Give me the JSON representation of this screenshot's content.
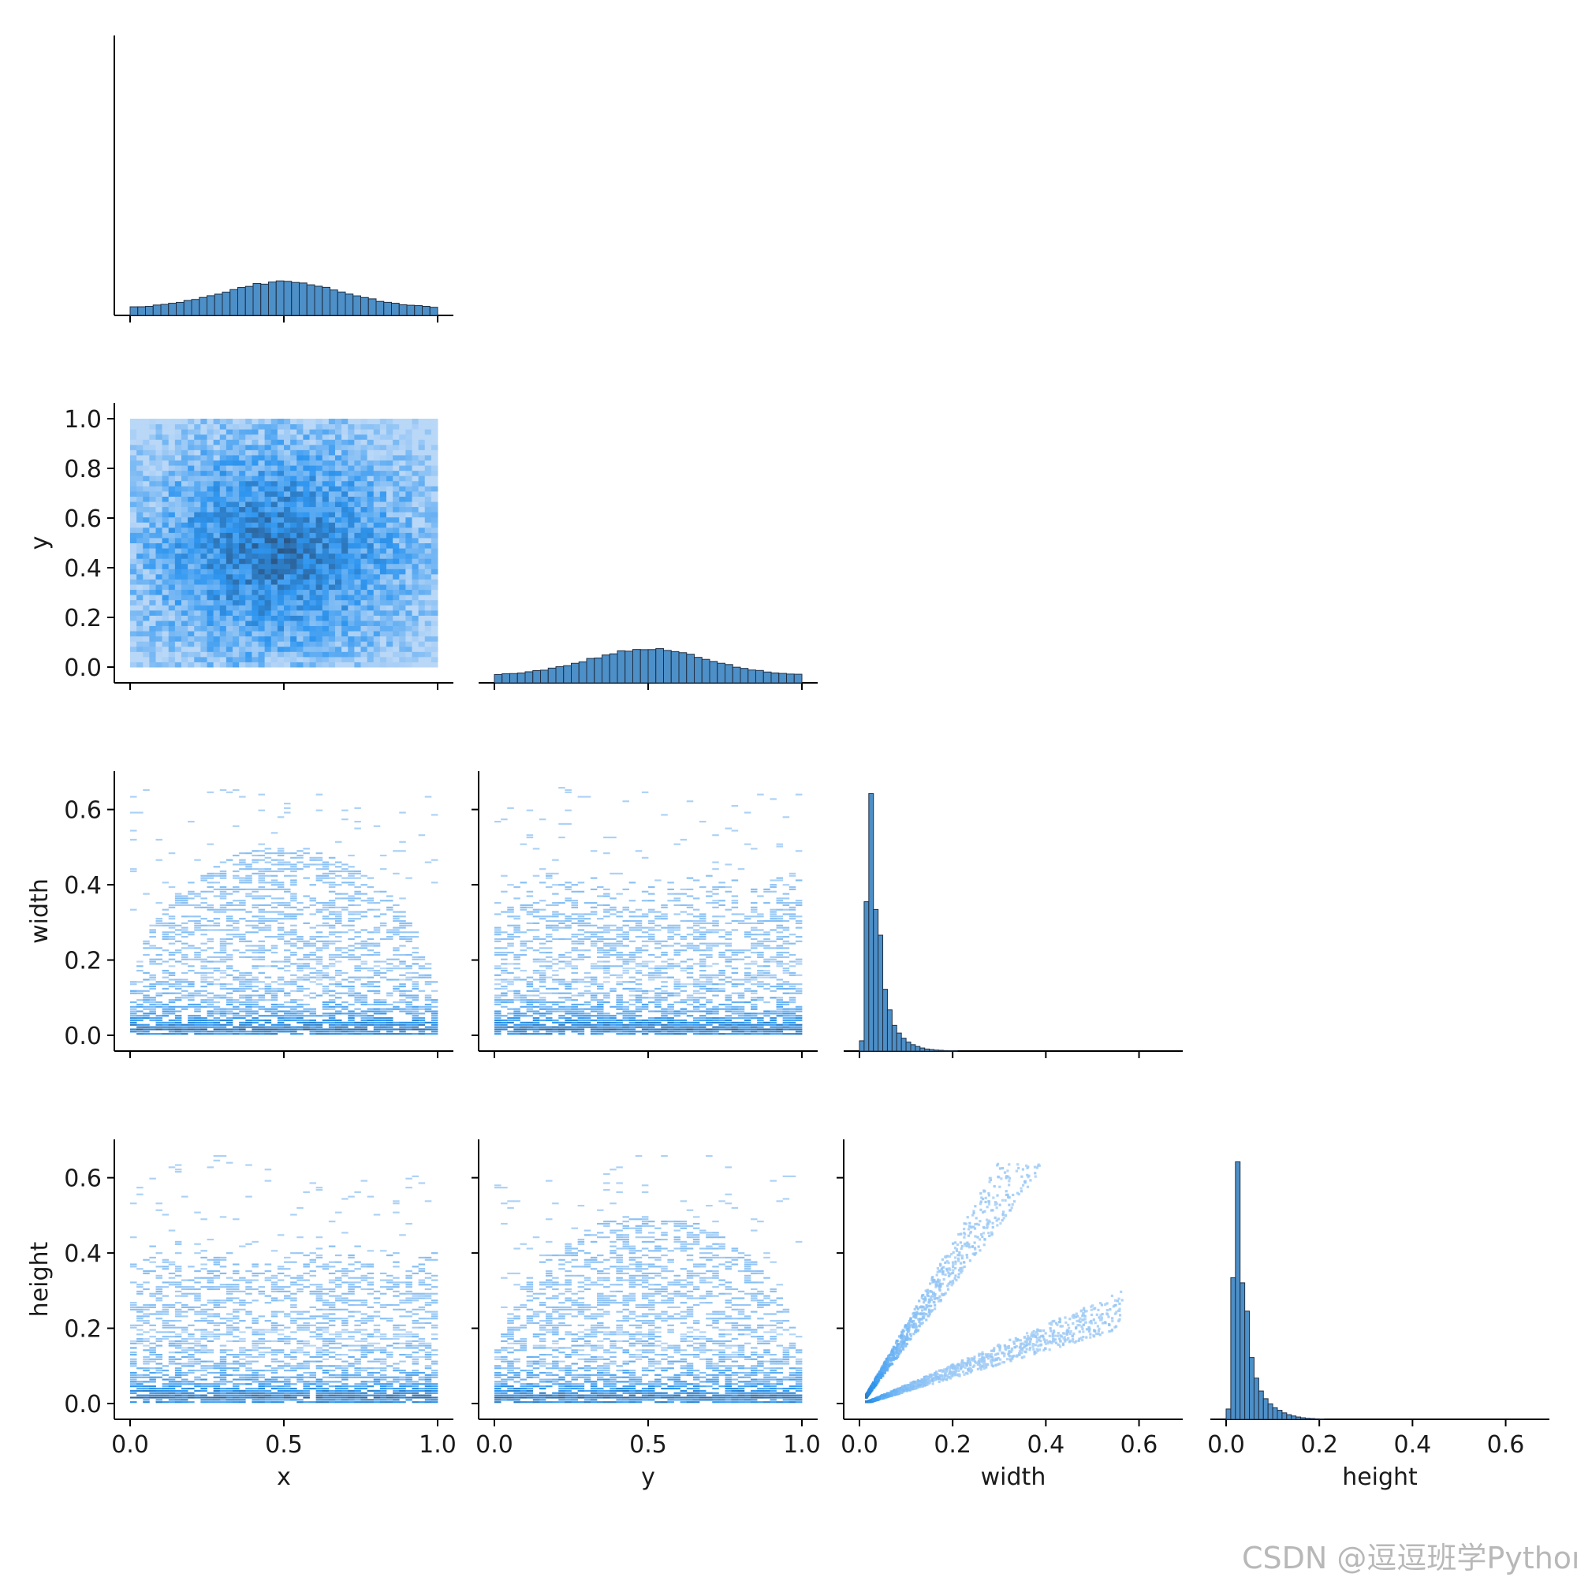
{
  "chart_data": {
    "type": "pairplot",
    "kind": "histogram-grid",
    "corner": true,
    "variables": [
      "x",
      "y",
      "width",
      "height"
    ],
    "colors": {
      "bar_fill": "#4d8fc7",
      "bar_edge": "#1f2f44",
      "heat_light": "#b9d7f7",
      "heat_mid": "#2f96f0",
      "heat_dark": "#2a4a70",
      "axis": "#000000"
    },
    "axes": {
      "x": {
        "range": [
          0.0,
          1.0
        ],
        "ticks": [
          "0.0",
          "0.5",
          "1.0"
        ]
      },
      "y": {
        "range": [
          0.0,
          1.0
        ],
        "ticks": [
          "0.0",
          "0.2",
          "0.4",
          "0.6",
          "0.8",
          "1.0"
        ],
        "xticks": [
          "0.0",
          "0.5",
          "1.0"
        ]
      },
      "width": {
        "range": [
          0.0,
          0.66
        ],
        "ticks": [
          "0.0",
          "0.2",
          "0.4",
          "0.6"
        ]
      },
      "height": {
        "range": [
          0.0,
          0.66
        ],
        "ticks": [
          "0.0",
          "0.2",
          "0.4",
          "0.6"
        ]
      }
    },
    "diagonal": [
      {
        "variable": "x",
        "shape": "broad-hump",
        "peak_at": 0.5,
        "edge_fraction": 0.22
      },
      {
        "variable": "y",
        "shape": "broad-hump",
        "peak_at": 0.5,
        "edge_fraction": 0.22
      },
      {
        "variable": "width",
        "shape": "right-skewed",
        "bin_width": 0.01,
        "bins_start": 0.0,
        "counts": [
          0.04,
          0.58,
          1.0,
          0.55,
          0.45,
          0.24,
          0.16,
          0.1,
          0.07,
          0.05,
          0.035,
          0.025,
          0.018,
          0.012,
          0.008,
          0.006,
          0.004,
          0.003,
          0.002,
          0.0015,
          0.001
        ]
      },
      {
        "variable": "height",
        "shape": "right-skewed",
        "bin_width": 0.01,
        "bins_start": 0.0,
        "counts": [
          0.04,
          0.55,
          1.0,
          0.53,
          0.42,
          0.24,
          0.16,
          0.11,
          0.08,
          0.06,
          0.045,
          0.035,
          0.025,
          0.018,
          0.013,
          0.009,
          0.006,
          0.004,
          0.003,
          0.002,
          0.0015
        ]
      }
    ],
    "offdiagonal": [
      {
        "row": "y",
        "col": "x",
        "pattern": "dense-center-blob",
        "center": [
          0.5,
          0.5
        ]
      },
      {
        "row": "width",
        "col": "x",
        "pattern": "dome-banded",
        "dense_band": 0.03
      },
      {
        "row": "width",
        "col": "y",
        "pattern": "flat-banded",
        "dense_band": 0.03
      },
      {
        "row": "height",
        "col": "x",
        "pattern": "flat-banded",
        "dense_band": 0.03
      },
      {
        "row": "height",
        "col": "y",
        "pattern": "dome-banded",
        "dense_band": 0.03
      },
      {
        "row": "height",
        "col": "width",
        "pattern": "two-linear-arms",
        "slopes": [
          2.2,
          0.45
        ]
      }
    ]
  },
  "watermark": "CSDN @逗逗班学Python"
}
